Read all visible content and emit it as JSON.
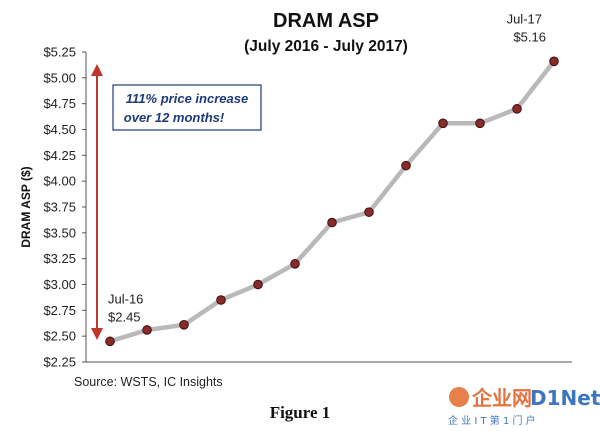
{
  "chart_data": {
    "type": "line",
    "title": "DRAM ASP",
    "subtitle": "(July 2016 - July 2017)",
    "ylabel": "DRAM ASP ($)",
    "xlabel": "",
    "ylim": [
      2.25,
      5.25
    ],
    "y_ticks": [
      "$2.25",
      "$2.50",
      "$2.75",
      "$3.00",
      "$3.25",
      "$3.50",
      "$3.75",
      "$4.00",
      "$4.25",
      "$4.50",
      "$4.75",
      "$5.00",
      "$5.25"
    ],
    "y_tick_values": [
      2.25,
      2.5,
      2.75,
      3.0,
      3.25,
      3.5,
      3.75,
      4.0,
      4.25,
      4.5,
      4.75,
      5.0,
      5.25
    ],
    "grid": false,
    "series": [
      {
        "values": [
          2.45,
          2.56,
          2.61,
          2.85,
          3.0,
          3.2,
          3.6,
          3.7,
          4.15,
          4.56,
          4.56,
          4.7,
          5.16
        ]
      }
    ],
    "point_labels": [
      {
        "index": 0,
        "line1": "Jul-16",
        "line2": "$2.45"
      },
      {
        "index": 12,
        "line1": "Jul-17",
        "line2": "$5.16"
      }
    ],
    "annotation": {
      "line1": "111% price increase",
      "line2": "over 12 months!"
    },
    "source": "Source:  WSTS, IC Insights",
    "colors": {
      "line": "#b9b9b9",
      "marker_fill": "#8b2a2a",
      "marker_stroke": "#3a0f0f",
      "arrow": "#c0352b",
      "annotation_border": "#1f3a78",
      "annotation_text": "#1f3a78"
    }
  },
  "caption": "Figure 1",
  "watermark": {
    "brand_cn": "企业网",
    "brand_en": "D1Net",
    "tagline": "企 业 I T 第 1 门 户"
  }
}
